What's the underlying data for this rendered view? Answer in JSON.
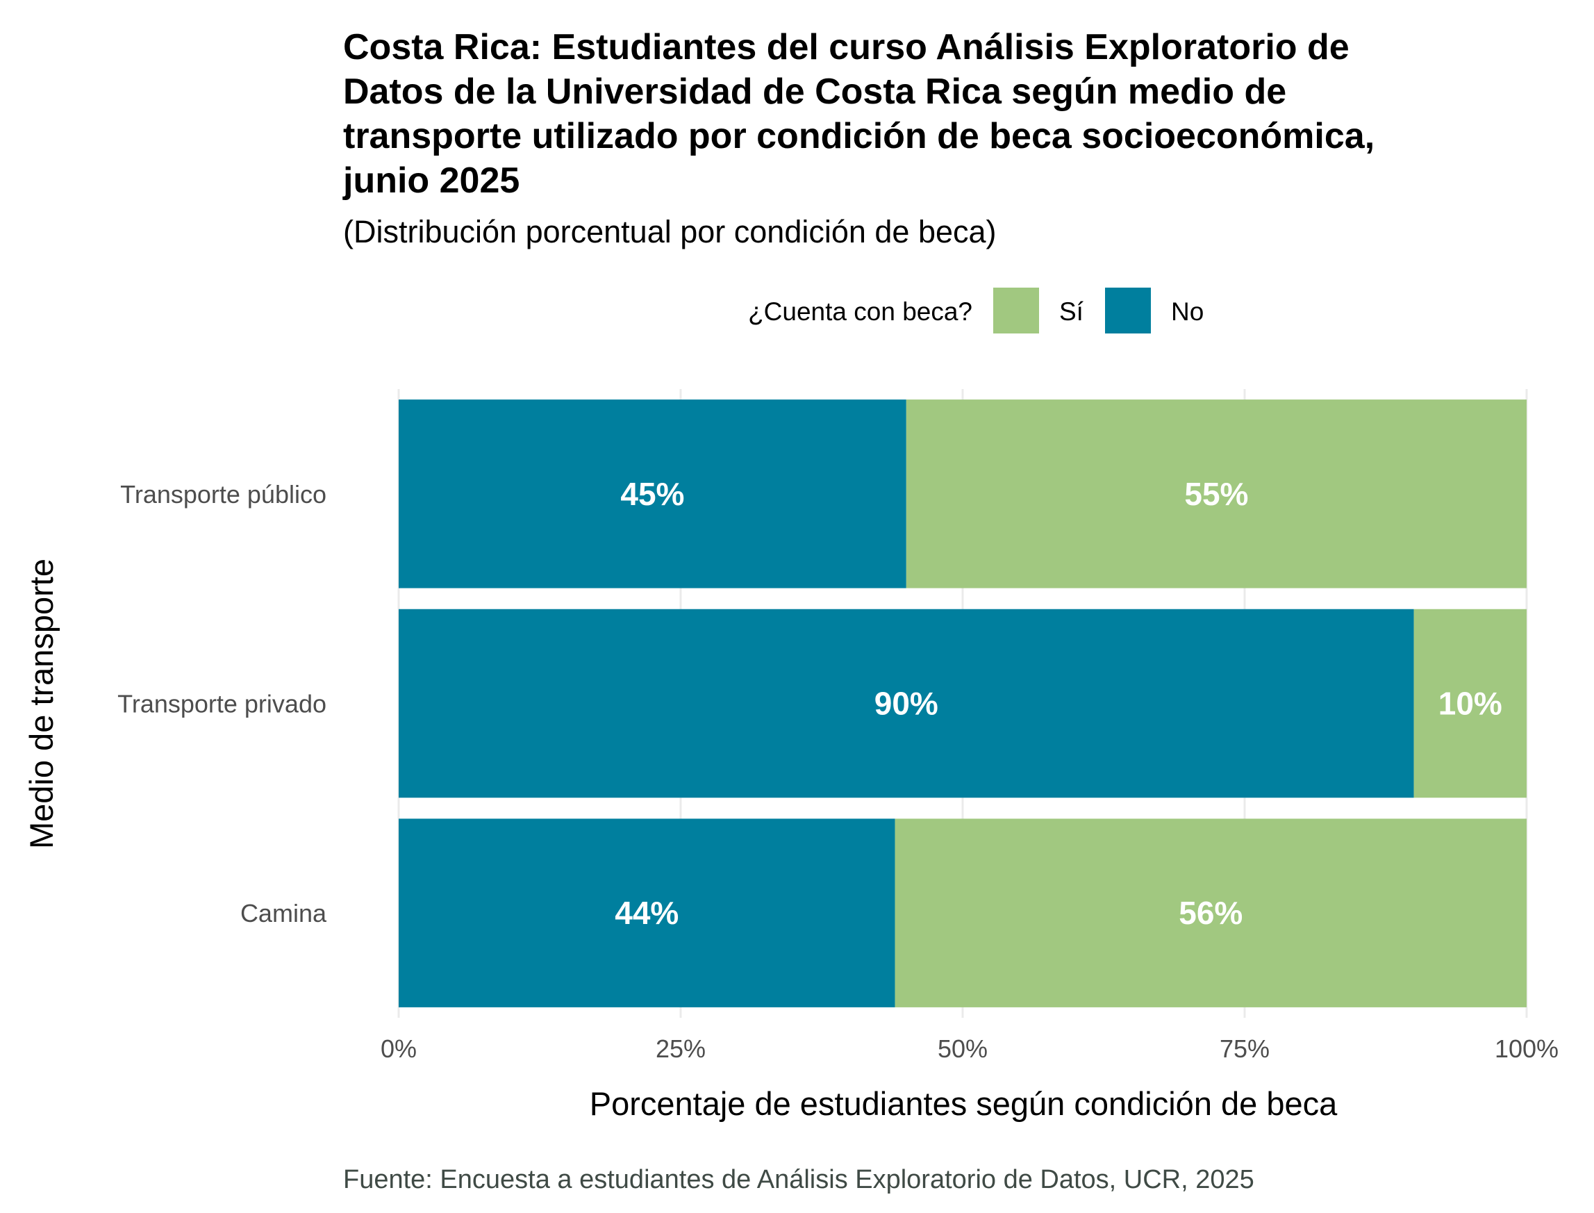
{
  "chart_data": {
    "type": "bar",
    "orientation": "horizontal",
    "stacked": true,
    "title_lines": [
      "Costa Rica: Estudiantes del curso Análisis Exploratorio de",
      "Datos de la Universidad de Costa Rica según medio de",
      "transporte utilizado por condición de beca socioeconómica,",
      "junio 2025"
    ],
    "subtitle": "(Distribución porcentual por condición de beca)",
    "legend": {
      "title": "¿Cuenta con beca?",
      "position": "top",
      "entries": [
        "Sí",
        "No"
      ]
    },
    "categories": [
      "Transporte público",
      "Transporte privado",
      "Camina"
    ],
    "series": [
      {
        "name": "No",
        "color": "#007f9e",
        "values": [
          45,
          90,
          44
        ],
        "labels": [
          "45%",
          "90%",
          "44%"
        ]
      },
      {
        "name": "Sí",
        "color": "#a1c880",
        "values": [
          55,
          10,
          56
        ],
        "labels": [
          "55%",
          "10%",
          "56%"
        ]
      }
    ],
    "xlabel": "Porcentaje de estudiantes según condición de beca",
    "ylabel": "Medio de transporte",
    "xlim": [
      0,
      100
    ],
    "x_ticks": [
      0,
      25,
      50,
      75,
      100
    ],
    "x_tick_labels": [
      "0%",
      "25%",
      "50%",
      "75%",
      "100%"
    ],
    "grid": true,
    "caption": "Fuente: Encuesta a estudiantes de Análisis Exploratorio de Datos, UCR, 2025"
  }
}
